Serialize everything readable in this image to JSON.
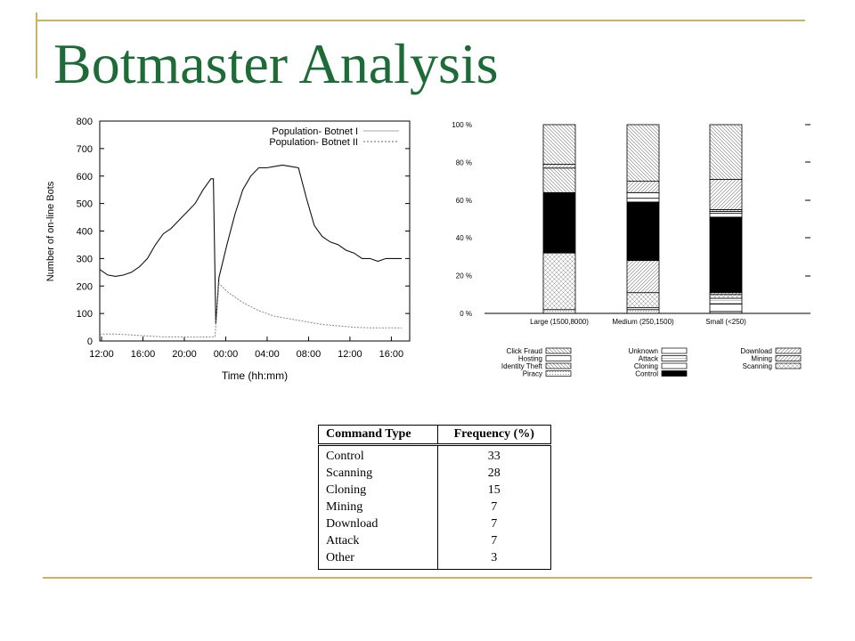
{
  "title": "Botmaster Analysis",
  "colors": {
    "title": "#1d6b36",
    "accent_lines": "#c7b563"
  },
  "chart_data": [
    {
      "type": "line",
      "title": "",
      "xlabel": "Time (hh:mm)",
      "ylabel": "Number of on-line Bots",
      "ylim": [
        0,
        800
      ],
      "y_ticks": [
        "0",
        "100",
        "200",
        "300",
        "400",
        "500",
        "600",
        "700",
        "800"
      ],
      "x_ticks": [
        "12:00",
        "16:00",
        "20:00",
        "00:00",
        "04:00",
        "08:00",
        "12:00",
        "16:00"
      ],
      "grid": false,
      "legend_position": "top-right",
      "series": [
        {
          "name": "Population- Botnet I",
          "x": [
            0,
            1,
            2,
            3,
            4,
            5,
            6,
            7,
            8,
            9,
            10,
            11,
            12,
            13,
            14,
            14.3,
            14.6,
            15,
            16,
            17,
            18,
            19,
            20,
            21,
            22,
            23,
            24,
            25,
            26,
            27,
            28,
            29,
            30,
            31,
            32,
            33,
            34,
            35,
            36,
            37,
            38
          ],
          "y": [
            260,
            240,
            235,
            240,
            250,
            270,
            300,
            350,
            390,
            410,
            440,
            470,
            500,
            550,
            590,
            590,
            60,
            230,
            350,
            460,
            550,
            600,
            630,
            630,
            635,
            640,
            635,
            630,
            520,
            420,
            380,
            360,
            350,
            330,
            320,
            300,
            300,
            290,
            300,
            300,
            300
          ]
        },
        {
          "name": "Population- Botnet II",
          "x": [
            0,
            2,
            4,
            6,
            8,
            10,
            12,
            14,
            14.5,
            15,
            16,
            18,
            20,
            22,
            24,
            26,
            28,
            30,
            32,
            34,
            36,
            38
          ],
          "y": [
            25,
            25,
            22,
            18,
            15,
            15,
            14,
            15,
            15,
            210,
            180,
            140,
            110,
            90,
            80,
            70,
            60,
            55,
            50,
            48,
            48,
            48
          ]
        }
      ]
    },
    {
      "type": "bar",
      "stacked": true,
      "title": "",
      "ylim": [
        0,
        100
      ],
      "y_ticks": [
        "0 %",
        "20 %",
        "40 %",
        "60 %",
        "80 %",
        "100 %"
      ],
      "categories": [
        "Large (1500,8000)",
        "Medium (250,1500)",
        "Small (<250)"
      ],
      "series": [
        {
          "name": "Piracy",
          "values": [
            2,
            2,
            1
          ]
        },
        {
          "name": "Cloning",
          "values": [
            0,
            1,
            4
          ]
        },
        {
          "name": "Attack",
          "values": [
            0,
            0,
            3
          ]
        },
        {
          "name": "Scanning",
          "values": [
            30,
            8,
            2
          ]
        },
        {
          "name": "Mining",
          "values": [
            0,
            17,
            1
          ]
        },
        {
          "name": "Control",
          "values": [
            32,
            31,
            40
          ]
        },
        {
          "name": "Hosting",
          "values": [
            0,
            2,
            2
          ]
        },
        {
          "name": "Unknown",
          "values": [
            0,
            3,
            1
          ]
        },
        {
          "name": "Identity Theft",
          "values": [
            13,
            0,
            1
          ]
        },
        {
          "name": "Download",
          "values": [
            2,
            6,
            16
          ]
        },
        {
          "name": "Click Fraud",
          "values": [
            21,
            30,
            29
          ]
        }
      ],
      "legend_columns": [
        [
          "Click Fraud",
          "Hosting",
          "Identity Theft",
          "Piracy"
        ],
        [
          "Unknown",
          "Attack",
          "Cloning",
          "Control"
        ],
        [
          "Download",
          "Mining",
          "Scanning"
        ]
      ]
    },
    {
      "type": "table",
      "headers": [
        "Command Type",
        "Frequency (%)"
      ],
      "rows": [
        [
          "Control",
          "33"
        ],
        [
          "Scanning",
          "28"
        ],
        [
          "Cloning",
          "15"
        ],
        [
          "Mining",
          "7"
        ],
        [
          "Download",
          "7"
        ],
        [
          "Attack",
          "7"
        ],
        [
          "Other",
          "3"
        ]
      ]
    }
  ]
}
